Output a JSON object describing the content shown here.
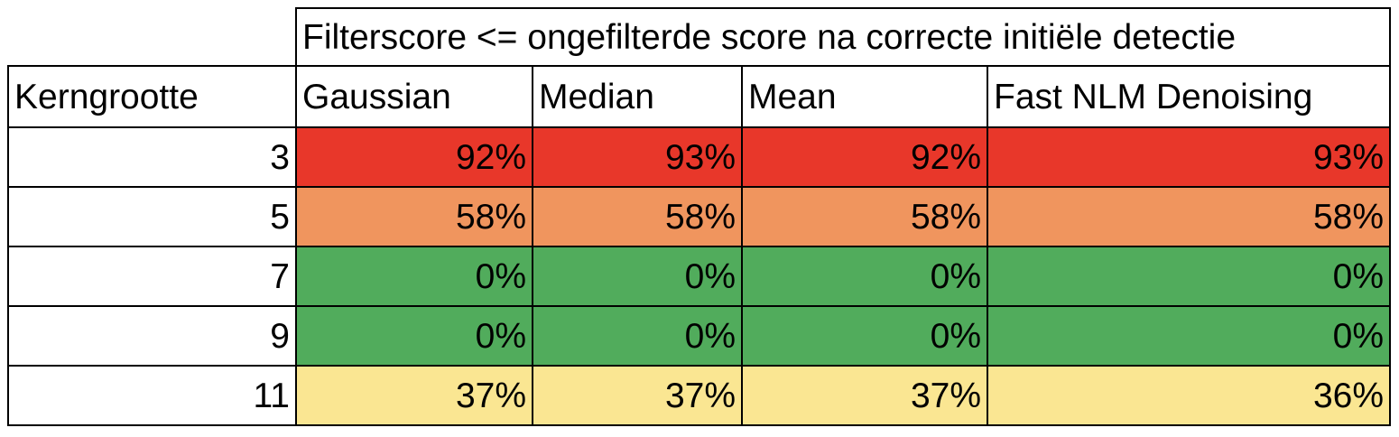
{
  "table": {
    "group_header": "Filterscore <= ongefilterde score na correcte initiële detectie",
    "columns": [
      "Kerngrootte",
      "Gaussian",
      "Median",
      "Mean",
      "Fast NLM Denoising"
    ],
    "rows": [
      {
        "kernel": "3",
        "values": [
          "92%",
          "93%",
          "92%",
          "93%"
        ],
        "color": "#e8372a"
      },
      {
        "kernel": "5",
        "values": [
          "58%",
          "58%",
          "58%",
          "58%"
        ],
        "color": "#f0955e"
      },
      {
        "kernel": "7",
        "values": [
          "0%",
          "0%",
          "0%",
          "0%"
        ],
        "color": "#51ac5c"
      },
      {
        "kernel": "9",
        "values": [
          "0%",
          "0%",
          "0%",
          "0%"
        ],
        "color": "#51ac5c"
      },
      {
        "kernel": "11",
        "values": [
          "37%",
          "37%",
          "37%",
          "36%"
        ],
        "color": "#fae692"
      }
    ]
  }
}
